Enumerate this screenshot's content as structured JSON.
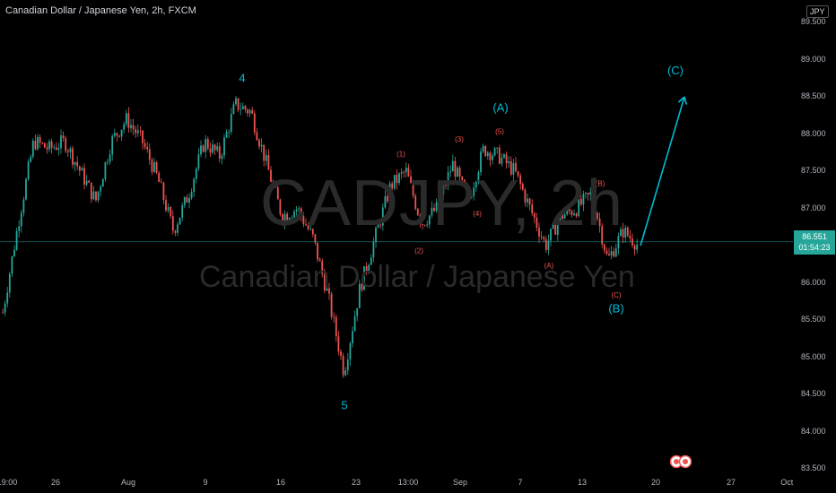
{
  "header": {
    "title": "Canadian Dollar / Japanese Yen, 2h, FXCM"
  },
  "watermark": {
    "symbol": "CADJPY, 2h",
    "name": "Canadian Dollar / Japanese Yen"
  },
  "axis": {
    "currency": "JPY"
  },
  "price_badge": {
    "price": "86.551",
    "countdown": "01:54:23"
  },
  "colors": {
    "up": "#26a69a",
    "down": "#ef5350",
    "primary_wave": "#00bcd4",
    "minor_wave": "#ef5350",
    "background": "#000000"
  },
  "chart_data": {
    "type": "candlestick",
    "title": "Canadian Dollar / Japanese Yen, 2h, FXCM",
    "y_ticks": [
      "89.500",
      "89.000",
      "88.500",
      "88.000",
      "87.500",
      "87.000",
      "86.500",
      "86.000",
      "85.500",
      "85.000",
      "84.500",
      "84.000",
      "83.500"
    ],
    "ylim": [
      83.5,
      89.5
    ],
    "x_ticks": [
      "19:00",
      "26",
      "Aug",
      "9",
      "16",
      "23",
      "13:00",
      "Sep",
      "7",
      "13",
      "20",
      "27",
      "Oct"
    ],
    "current_price": 86.551,
    "price_path": [
      {
        "t": "19:00",
        "v": 85.6
      },
      {
        "t": "19:00",
        "v": 86.8
      },
      {
        "t": "19:00",
        "v": 87.9
      },
      {
        "t": "26",
        "v": 87.8
      },
      {
        "t": "26",
        "v": 87.9
      },
      {
        "t": "26",
        "v": 87.5
      },
      {
        "t": "26",
        "v": 87.1
      },
      {
        "t": "26",
        "v": 87.9
      },
      {
        "t": "Aug",
        "v": 88.2
      },
      {
        "t": "Aug",
        "v": 87.9
      },
      {
        "t": "Aug",
        "v": 87.4
      },
      {
        "t": "Aug",
        "v": 86.7
      },
      {
        "t": "Aug",
        "v": 87.2
      },
      {
        "t": "9",
        "v": 87.9
      },
      {
        "t": "9",
        "v": 87.7
      },
      {
        "t": "9",
        "v": 88.4
      },
      {
        "t": "9",
        "v": 88.3
      },
      {
        "t": "16",
        "v": 87.6
      },
      {
        "t": "16",
        "v": 86.9
      },
      {
        "t": "16",
        "v": 87.0
      },
      {
        "t": "16",
        "v": 86.6
      },
      {
        "t": "23",
        "v": 85.8
      },
      {
        "t": "23",
        "v": 84.8
      },
      {
        "t": "23",
        "v": 85.9
      },
      {
        "t": "23",
        "v": 86.6
      },
      {
        "t": "13:00",
        "v": 87.3
      },
      {
        "t": "13:00",
        "v": 87.5
      },
      {
        "t": "13:00",
        "v": 86.8
      },
      {
        "t": "13:00",
        "v": 87.0
      },
      {
        "t": "Sep",
        "v": 87.6
      },
      {
        "t": "Sep",
        "v": 87.1
      },
      {
        "t": "Sep",
        "v": 87.8
      },
      {
        "t": "7",
        "v": 87.7
      },
      {
        "t": "7",
        "v": 87.5
      },
      {
        "t": "7",
        "v": 87.0
      },
      {
        "t": "7",
        "v": 86.5
      },
      {
        "t": "13",
        "v": 86.9
      },
      {
        "t": "13",
        "v": 87.0
      },
      {
        "t": "13",
        "v": 87.2
      },
      {
        "t": "13",
        "v": 86.3
      },
      {
        "t": "13",
        "v": 86.7
      },
      {
        "t": "13",
        "v": 86.5
      }
    ],
    "annotations": [
      {
        "text": "4",
        "style": "primary",
        "price": 88.7,
        "at": "9"
      },
      {
        "text": "5",
        "style": "primary",
        "price": 84.3,
        "at": "23"
      },
      {
        "text": "(A)",
        "style": "primary",
        "price": 88.3,
        "at": "Sep"
      },
      {
        "text": "(B)",
        "style": "primary",
        "price": 85.6,
        "at": "13"
      },
      {
        "text": "(C)",
        "style": "primary",
        "price": 88.8,
        "at": "20"
      },
      {
        "text": "(1)",
        "style": "minor",
        "price": 87.7,
        "at": "13:00"
      },
      {
        "text": "(2)",
        "style": "minor",
        "price": 86.4,
        "at": "13:00"
      },
      {
        "text": "(3)",
        "style": "minor",
        "price": 87.9,
        "at": "Sep"
      },
      {
        "text": "(4)",
        "style": "minor",
        "price": 86.9,
        "at": "Sep"
      },
      {
        "text": "(5)",
        "style": "minor",
        "price": 88.0,
        "at": "7"
      },
      {
        "text": "(A)",
        "style": "minor",
        "price": 86.2,
        "at": "13"
      },
      {
        "text": "(B)",
        "style": "minor",
        "price": 87.3,
        "at": "13"
      },
      {
        "text": "(C)",
        "style": "minor",
        "price": 85.8,
        "at": "13"
      }
    ],
    "projection": {
      "from_price": 86.5,
      "to_price": 88.5
    }
  }
}
